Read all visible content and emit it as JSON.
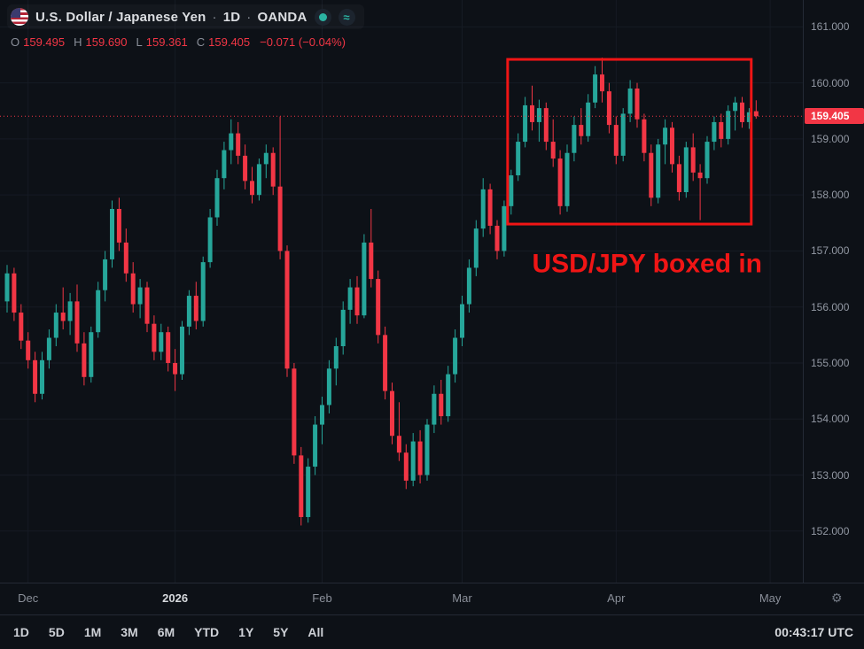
{
  "header": {
    "symbol_name": "U.S. Dollar / Japanese Yen",
    "sep": "·",
    "timeframe": "1D",
    "exchange": "OANDA",
    "buttons": {
      "dot_glyph": "",
      "approx_glyph": "≈"
    }
  },
  "ohlc": {
    "o_label": "O",
    "open": "159.495",
    "h_label": "H",
    "high": "159.690",
    "l_label": "L",
    "low": "159.361",
    "c_label": "C",
    "close": "159.405",
    "change": "−0.071 (−0.04%)"
  },
  "price_axis": {
    "ticks": [
      "161.000",
      "160.000",
      "159.000",
      "158.000",
      "157.000",
      "156.000",
      "155.000",
      "154.000",
      "153.000",
      "152.000"
    ],
    "last_price_label": "159.405"
  },
  "time_axis": {
    "labels": [
      {
        "text": "Dec",
        "index": 3
      },
      {
        "text": "2026",
        "index": 24,
        "highlight": true
      },
      {
        "text": "Feb",
        "index": 45
      },
      {
        "text": "Mar",
        "index": 65
      },
      {
        "text": "Apr",
        "index": 87
      },
      {
        "text": "May",
        "index": 109
      }
    ]
  },
  "toolbar": {
    "ranges": [
      "1D",
      "5D",
      "1M",
      "3M",
      "6M",
      "YTD",
      "1Y",
      "5Y",
      "All"
    ],
    "clock": "00:43:17 UTC"
  },
  "colors": {
    "up": "#26a69a",
    "down": "#f23645",
    "grid": "#161b24",
    "last_price_line": "#f23645",
    "annotation": "#f01515"
  },
  "chart_data": {
    "type": "candlestick",
    "symbol": "USD/JPY",
    "timeframe": "1D",
    "provider": "OANDA",
    "axis_range": [
      151.08,
      161.48
    ],
    "last_price": 159.405,
    "candles": [
      [
        156.1,
        156.75,
        155.9,
        156.6
      ],
      [
        156.6,
        156.7,
        155.75,
        155.9
      ],
      [
        155.9,
        156.05,
        155.25,
        155.4
      ],
      [
        155.4,
        155.55,
        154.9,
        155.05
      ],
      [
        155.05,
        155.2,
        154.3,
        154.45
      ],
      [
        154.45,
        155.2,
        154.35,
        155.05
      ],
      [
        155.05,
        155.6,
        154.9,
        155.45
      ],
      [
        155.45,
        156.05,
        155.3,
        155.9
      ],
      [
        155.9,
        156.35,
        155.6,
        155.75
      ],
      [
        155.75,
        156.25,
        155.5,
        156.1
      ],
      [
        156.1,
        156.4,
        155.2,
        155.35
      ],
      [
        155.35,
        155.55,
        154.6,
        154.75
      ],
      [
        154.75,
        155.65,
        154.65,
        155.55
      ],
      [
        155.55,
        156.45,
        155.45,
        156.3
      ],
      [
        156.3,
        157.0,
        156.1,
        156.85
      ],
      [
        156.85,
        157.9,
        156.7,
        157.75
      ],
      [
        157.75,
        157.95,
        157.0,
        157.15
      ],
      [
        157.15,
        157.4,
        156.45,
        156.6
      ],
      [
        156.6,
        156.8,
        155.9,
        156.05
      ],
      [
        156.05,
        156.5,
        155.8,
        156.35
      ],
      [
        156.35,
        156.45,
        155.55,
        155.7
      ],
      [
        155.7,
        155.85,
        155.05,
        155.2
      ],
      [
        155.2,
        155.7,
        155.05,
        155.55
      ],
      [
        155.55,
        155.65,
        154.85,
        155.0
      ],
      [
        155.0,
        155.25,
        154.5,
        154.8
      ],
      [
        154.8,
        155.75,
        154.7,
        155.65
      ],
      [
        155.65,
        156.3,
        155.5,
        156.2
      ],
      [
        156.2,
        156.45,
        155.6,
        155.75
      ],
      [
        155.75,
        156.9,
        155.65,
        156.8
      ],
      [
        156.8,
        157.75,
        156.7,
        157.6
      ],
      [
        157.6,
        158.45,
        157.45,
        158.3
      ],
      [
        158.3,
        158.95,
        158.1,
        158.8
      ],
      [
        158.8,
        159.35,
        158.55,
        159.1
      ],
      [
        159.1,
        159.3,
        158.55,
        158.7
      ],
      [
        158.7,
        158.9,
        158.1,
        158.25
      ],
      [
        158.25,
        158.5,
        157.85,
        158.0
      ],
      [
        158.0,
        158.65,
        157.9,
        158.55
      ],
      [
        158.55,
        158.9,
        158.3,
        158.75
      ],
      [
        158.75,
        158.85,
        158.0,
        158.15
      ],
      [
        158.15,
        159.4,
        156.85,
        157.0
      ],
      [
        157.0,
        157.1,
        154.75,
        154.9
      ],
      [
        154.9,
        155.0,
        153.2,
        153.35
      ],
      [
        153.35,
        153.5,
        152.1,
        152.25
      ],
      [
        152.25,
        153.3,
        152.15,
        153.15
      ],
      [
        153.15,
        154.05,
        153.0,
        153.9
      ],
      [
        153.9,
        154.4,
        153.55,
        154.25
      ],
      [
        154.25,
        155.05,
        154.1,
        154.9
      ],
      [
        154.9,
        155.45,
        154.6,
        155.3
      ],
      [
        155.3,
        156.1,
        155.15,
        155.95
      ],
      [
        155.95,
        156.5,
        155.7,
        156.35
      ],
      [
        156.35,
        156.55,
        155.7,
        155.85
      ],
      [
        155.85,
        157.3,
        155.8,
        157.15
      ],
      [
        157.15,
        157.75,
        156.35,
        156.5
      ],
      [
        156.5,
        156.65,
        155.35,
        155.5
      ],
      [
        155.5,
        155.65,
        154.35,
        154.5
      ],
      [
        154.5,
        154.65,
        153.55,
        153.7
      ],
      [
        153.7,
        154.3,
        153.25,
        153.4
      ],
      [
        153.4,
        153.55,
        152.75,
        152.9
      ],
      [
        152.9,
        153.75,
        152.8,
        153.6
      ],
      [
        153.6,
        153.8,
        152.85,
        153.0
      ],
      [
        153.0,
        154.0,
        152.9,
        153.9
      ],
      [
        153.9,
        154.6,
        153.75,
        154.45
      ],
      [
        154.45,
        154.7,
        153.9,
        154.05
      ],
      [
        154.05,
        154.95,
        153.95,
        154.8
      ],
      [
        154.8,
        155.6,
        154.65,
        155.45
      ],
      [
        155.45,
        156.2,
        155.3,
        156.05
      ],
      [
        156.05,
        156.85,
        155.9,
        156.7
      ],
      [
        156.7,
        157.55,
        156.55,
        157.4
      ],
      [
        157.4,
        158.3,
        157.25,
        158.1
      ],
      [
        158.1,
        158.2,
        157.3,
        157.45
      ],
      [
        157.45,
        157.55,
        156.85,
        157.0
      ],
      [
        157.0,
        157.9,
        156.9,
        157.8
      ],
      [
        157.8,
        158.45,
        157.65,
        158.35
      ],
      [
        158.35,
        159.1,
        158.25,
        158.95
      ],
      [
        158.95,
        159.75,
        158.85,
        159.6
      ],
      [
        159.6,
        159.95,
        159.15,
        159.3
      ],
      [
        159.3,
        159.7,
        158.95,
        159.55
      ],
      [
        159.55,
        159.65,
        158.8,
        158.95
      ],
      [
        158.95,
        159.35,
        158.5,
        158.65
      ],
      [
        158.65,
        158.8,
        157.65,
        157.8
      ],
      [
        157.8,
        158.9,
        157.7,
        158.75
      ],
      [
        158.75,
        159.4,
        158.6,
        159.25
      ],
      [
        159.25,
        159.55,
        158.9,
        159.05
      ],
      [
        159.05,
        159.8,
        158.95,
        159.65
      ],
      [
        159.65,
        160.3,
        159.55,
        160.15
      ],
      [
        160.15,
        160.45,
        159.65,
        159.85
      ],
      [
        159.85,
        160.0,
        159.1,
        159.25
      ],
      [
        159.25,
        159.4,
        158.55,
        158.7
      ],
      [
        158.7,
        159.55,
        158.6,
        159.45
      ],
      [
        159.45,
        160.05,
        159.3,
        159.9
      ],
      [
        159.9,
        160.0,
        159.2,
        159.35
      ],
      [
        159.35,
        159.45,
        158.6,
        158.75
      ],
      [
        158.75,
        158.9,
        157.8,
        157.95
      ],
      [
        157.95,
        159.0,
        157.85,
        158.9
      ],
      [
        158.9,
        159.35,
        158.55,
        159.2
      ],
      [
        159.2,
        159.3,
        158.4,
        158.55
      ],
      [
        158.55,
        158.7,
        157.9,
        158.05
      ],
      [
        158.05,
        158.95,
        157.95,
        158.85
      ],
      [
        158.85,
        159.1,
        158.25,
        158.4
      ],
      [
        158.4,
        158.55,
        157.55,
        158.3
      ],
      [
        158.3,
        159.05,
        158.2,
        158.95
      ],
      [
        158.95,
        159.4,
        158.8,
        159.3
      ],
      [
        159.3,
        159.45,
        158.85,
        159.0
      ],
      [
        159.0,
        159.6,
        158.9,
        159.5
      ],
      [
        159.5,
        159.75,
        159.15,
        159.65
      ],
      [
        159.65,
        159.75,
        159.2,
        159.3
      ],
      [
        159.3,
        159.55,
        159.18,
        159.476
      ],
      [
        159.495,
        159.69,
        159.361,
        159.405
      ]
    ],
    "annotations": [
      {
        "kind": "box",
        "index_from": 71.5,
        "index_to": 106.3,
        "price_top": 160.42,
        "price_bottom": 157.48
      },
      {
        "kind": "text",
        "text": "USD/JPY boxed in",
        "index": 75,
        "price": 156.62,
        "font_size": 30
      }
    ]
  }
}
